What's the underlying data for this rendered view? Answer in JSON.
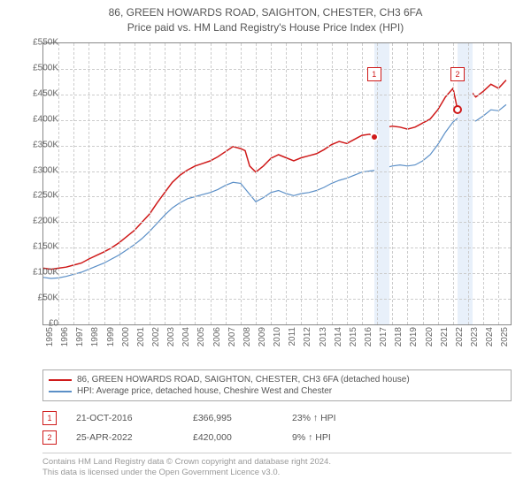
{
  "title_line1": "86, GREEN HOWARDS ROAD, SAIGHTON, CHESTER, CH3 6FA",
  "title_line2": "Price paid vs. HM Land Registry's House Price Index (HPI)",
  "chart": {
    "type": "line",
    "background_color": "#ffffff",
    "grid_color": "#cccccc",
    "border_color": "#888888",
    "y_axis": {
      "min": 0,
      "max": 550000,
      "ticks": [
        0,
        50000,
        100000,
        150000,
        200000,
        250000,
        300000,
        350000,
        400000,
        450000,
        500000,
        550000
      ],
      "labels": [
        "£0",
        "£50K",
        "£100K",
        "£150K",
        "£200K",
        "£250K",
        "£300K",
        "£350K",
        "£400K",
        "£450K",
        "£500K",
        "£550K"
      ]
    },
    "x_axis": {
      "min": 1995,
      "max": 2025.8,
      "ticks": [
        1995,
        1996,
        1997,
        1998,
        1999,
        2000,
        2001,
        2002,
        2003,
        2004,
        2005,
        2006,
        2007,
        2008,
        2009,
        2010,
        2011,
        2012,
        2013,
        2014,
        2015,
        2016,
        2017,
        2018,
        2019,
        2020,
        2021,
        2022,
        2023,
        2024,
        2025
      ],
      "labels": [
        "1995",
        "1996",
        "1997",
        "1998",
        "1999",
        "2000",
        "2001",
        "2002",
        "2003",
        "2004",
        "2005",
        "2006",
        "2007",
        "2008",
        "2009",
        "2010",
        "2011",
        "2012",
        "2013",
        "2014",
        "2015",
        "2016",
        "2017",
        "2018",
        "2019",
        "2020",
        "2021",
        "2022",
        "2023",
        "2024",
        "2025"
      ]
    },
    "shaded_bands": [
      {
        "from": 2016.8,
        "to": 2017.8,
        "color": "#e8f0fa"
      },
      {
        "from": 2022.3,
        "to": 2023.3,
        "color": "#e8f0fa"
      }
    ],
    "series": [
      {
        "name": "property",
        "color": "#cf1a1a",
        "line_width": 1.5,
        "data": [
          [
            1995,
            110000
          ],
          [
            1995.5,
            108000
          ],
          [
            1996,
            110000
          ],
          [
            1996.5,
            112000
          ],
          [
            1997,
            116000
          ],
          [
            1997.5,
            120000
          ],
          [
            1998,
            128000
          ],
          [
            1998.5,
            135000
          ],
          [
            1999,
            142000
          ],
          [
            1999.5,
            150000
          ],
          [
            2000,
            160000
          ],
          [
            2000.5,
            172000
          ],
          [
            2001,
            184000
          ],
          [
            2001.5,
            200000
          ],
          [
            2002,
            216000
          ],
          [
            2002.5,
            238000
          ],
          [
            2003,
            258000
          ],
          [
            2003.5,
            278000
          ],
          [
            2004,
            292000
          ],
          [
            2004.5,
            302000
          ],
          [
            2005,
            310000
          ],
          [
            2005.5,
            315000
          ],
          [
            2006,
            320000
          ],
          [
            2006.5,
            328000
          ],
          [
            2007,
            338000
          ],
          [
            2007.5,
            348000
          ],
          [
            2008,
            344000
          ],
          [
            2008.3,
            340000
          ],
          [
            2008.6,
            310000
          ],
          [
            2009,
            298000
          ],
          [
            2009.5,
            310000
          ],
          [
            2010,
            325000
          ],
          [
            2010.5,
            332000
          ],
          [
            2011,
            326000
          ],
          [
            2011.5,
            320000
          ],
          [
            2012,
            326000
          ],
          [
            2012.5,
            330000
          ],
          [
            2013,
            334000
          ],
          [
            2013.5,
            342000
          ],
          [
            2014,
            352000
          ],
          [
            2014.5,
            358000
          ],
          [
            2015,
            354000
          ],
          [
            2015.5,
            362000
          ],
          [
            2016,
            370000
          ],
          [
            2016.5,
            372000
          ],
          [
            2016.8,
            366995
          ],
          [
            2017,
            378000
          ],
          [
            2017.5,
            385000
          ],
          [
            2018,
            388000
          ],
          [
            2018.5,
            386000
          ],
          [
            2019,
            382000
          ],
          [
            2019.5,
            386000
          ],
          [
            2020,
            394000
          ],
          [
            2020.5,
            402000
          ],
          [
            2021,
            420000
          ],
          [
            2021.5,
            445000
          ],
          [
            2022,
            462000
          ],
          [
            2022.3,
            420000
          ],
          [
            2022.6,
            472000
          ],
          [
            2023,
            462000
          ],
          [
            2023.5,
            445000
          ],
          [
            2024,
            456000
          ],
          [
            2024.5,
            470000
          ],
          [
            2025,
            462000
          ],
          [
            2025.5,
            478000
          ]
        ]
      },
      {
        "name": "hpi",
        "color": "#5b8fc7",
        "line_width": 1.2,
        "data": [
          [
            1995,
            92000
          ],
          [
            1995.5,
            90000
          ],
          [
            1996,
            91000
          ],
          [
            1996.5,
            94000
          ],
          [
            1997,
            98000
          ],
          [
            1997.5,
            102000
          ],
          [
            1998,
            108000
          ],
          [
            1998.5,
            114000
          ],
          [
            1999,
            120000
          ],
          [
            1999.5,
            128000
          ],
          [
            2000,
            136000
          ],
          [
            2000.5,
            146000
          ],
          [
            2001,
            156000
          ],
          [
            2001.5,
            168000
          ],
          [
            2002,
            182000
          ],
          [
            2002.5,
            198000
          ],
          [
            2003,
            214000
          ],
          [
            2003.5,
            228000
          ],
          [
            2004,
            238000
          ],
          [
            2004.5,
            246000
          ],
          [
            2005,
            250000
          ],
          [
            2005.5,
            254000
          ],
          [
            2006,
            258000
          ],
          [
            2006.5,
            264000
          ],
          [
            2007,
            272000
          ],
          [
            2007.5,
            278000
          ],
          [
            2008,
            276000
          ],
          [
            2008.5,
            258000
          ],
          [
            2009,
            240000
          ],
          [
            2009.5,
            248000
          ],
          [
            2010,
            258000
          ],
          [
            2010.5,
            262000
          ],
          [
            2011,
            256000
          ],
          [
            2011.5,
            252000
          ],
          [
            2012,
            256000
          ],
          [
            2012.5,
            258000
          ],
          [
            2013,
            262000
          ],
          [
            2013.5,
            268000
          ],
          [
            2014,
            276000
          ],
          [
            2014.5,
            282000
          ],
          [
            2015,
            286000
          ],
          [
            2015.5,
            292000
          ],
          [
            2016,
            298000
          ],
          [
            2016.5,
            300000
          ],
          [
            2017,
            302000
          ],
          [
            2017.5,
            306000
          ],
          [
            2018,
            310000
          ],
          [
            2018.5,
            312000
          ],
          [
            2019,
            310000
          ],
          [
            2019.5,
            312000
          ],
          [
            2020,
            320000
          ],
          [
            2020.5,
            332000
          ],
          [
            2021,
            352000
          ],
          [
            2021.5,
            376000
          ],
          [
            2022,
            396000
          ],
          [
            2022.5,
            408000
          ],
          [
            2023,
            402000
          ],
          [
            2023.5,
            398000
          ],
          [
            2024,
            408000
          ],
          [
            2024.5,
            420000
          ],
          [
            2025,
            418000
          ],
          [
            2025.5,
            430000
          ]
        ]
      }
    ],
    "markers": [
      {
        "id": "1",
        "x": 2016.8,
        "y_dot": 366995,
        "label_y": 490000,
        "dot_fill": "#cf1a1a",
        "dot_border": "#ffffff"
      },
      {
        "id": "2",
        "x": 2022.3,
        "y_dot": 420000,
        "label_y": 490000,
        "dot_fill": "#ffffff",
        "dot_border": "#cf1a1a"
      }
    ]
  },
  "legend": {
    "items": [
      {
        "color": "#cf1a1a",
        "label": "86, GREEN HOWARDS ROAD, SAIGHTON, CHESTER, CH3 6FA (detached house)"
      },
      {
        "color": "#5b8fc7",
        "label": "HPI: Average price, detached house, Cheshire West and Chester"
      }
    ]
  },
  "sales": [
    {
      "n": "1",
      "date": "21-OCT-2016",
      "price": "£366,995",
      "delta": "23% ↑ HPI"
    },
    {
      "n": "2",
      "date": "25-APR-2022",
      "price": "£420,000",
      "delta": "9% ↑ HPI"
    }
  ],
  "footer_line1": "Contains HM Land Registry data © Crown copyright and database right 2024.",
  "footer_line2": "This data is licensed under the Open Government Licence v3.0."
}
